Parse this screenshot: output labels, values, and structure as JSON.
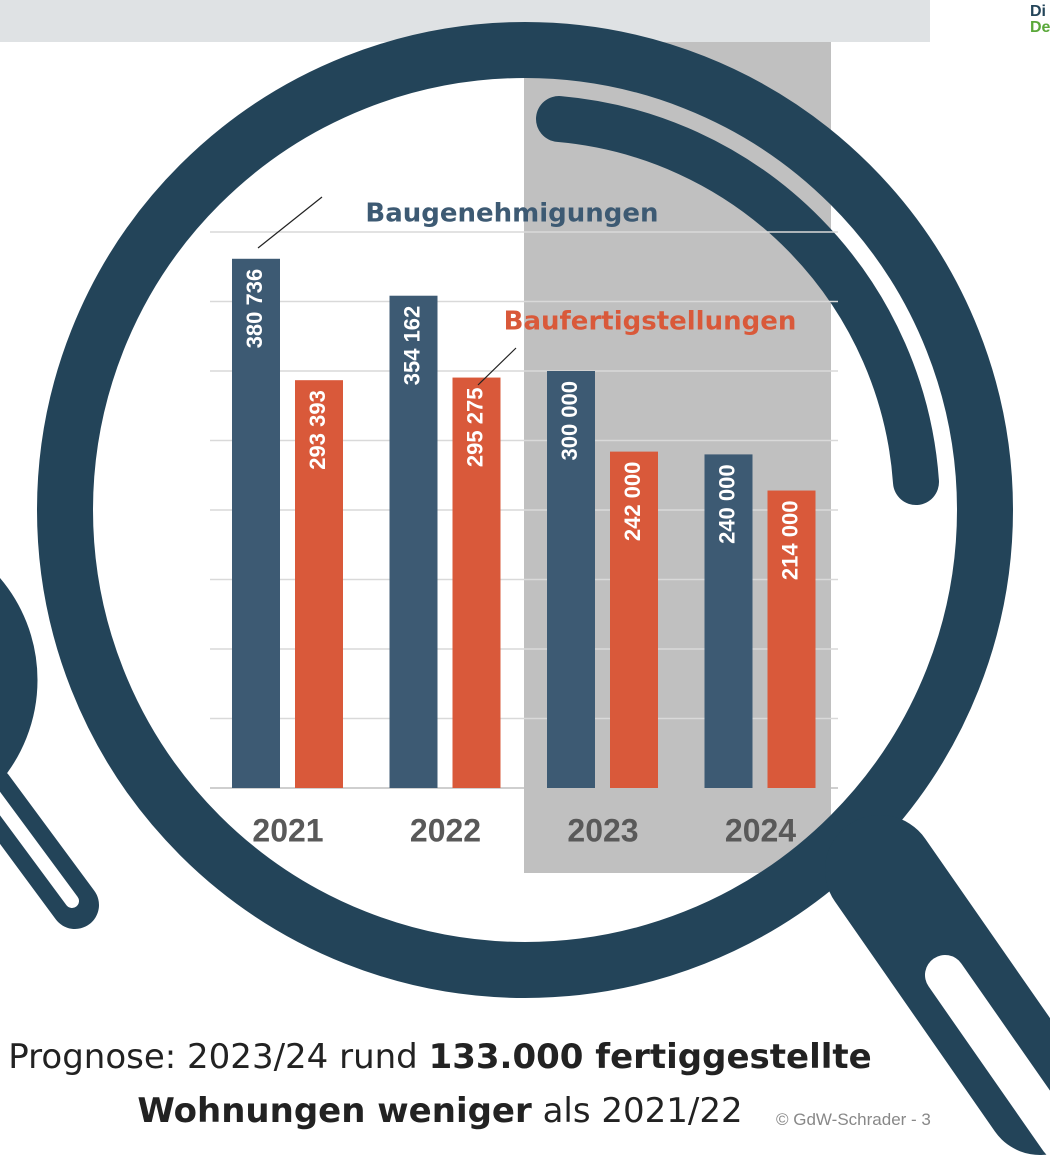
{
  "chart_data": {
    "type": "bar",
    "categories": [
      "2021",
      "2022",
      "2023",
      "2024"
    ],
    "series": [
      {
        "name": "Baugenehmigungen",
        "color": "#3d5a73",
        "values": [
          380736,
          354162,
          300000,
          240000
        ],
        "value_labels": [
          "380 736",
          "354 162",
          "300 000",
          "240 000"
        ]
      },
      {
        "name": "Baufertigstellungen",
        "color": "#d9593a",
        "values": [
          293393,
          295275,
          242000,
          214000
        ],
        "value_labels": [
          "293 393",
          "295 275",
          "242 000",
          "214 000"
        ]
      }
    ],
    "ylim": [
      0,
      400000
    ],
    "yticks": [
      0,
      50000,
      100000,
      150000,
      200000,
      250000,
      300000,
      350000,
      400000
    ],
    "grid": true
  },
  "logo": {
    "lines": [
      "Di",
      "De"
    ]
  },
  "caption": {
    "lines": [
      [
        {
          "text": "Prognose: 2023/24 rund ",
          "bold": false
        },
        {
          "text": "133.000 fertiggestellte",
          "bold": true
        }
      ],
      [
        {
          "text": "Wohnungen weniger",
          "bold": true
        },
        {
          "text": " als 2021/22",
          "bold": false
        }
      ]
    ]
  },
  "footer": "© GdW-Schrader - 3"
}
